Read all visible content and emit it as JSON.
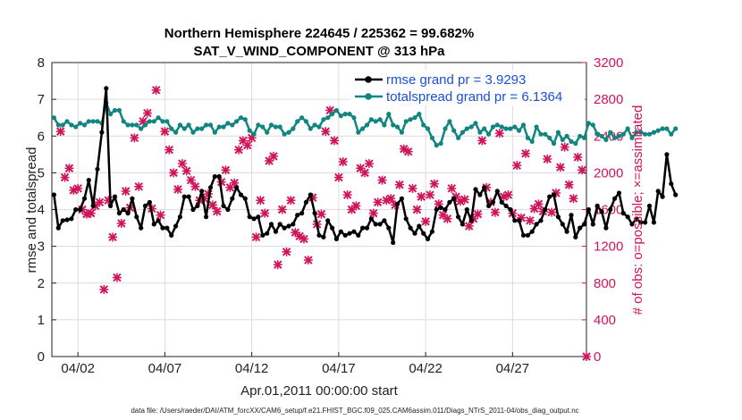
{
  "chart_data": {
    "type": "line",
    "title": "Northern Hemisphere 224645 / 225362 = 99.682%",
    "subtitle": "SAT_V_WIND_COMPONENT @ 313 hPa",
    "xlabel": "Apr.01,2011 00:00:00 start",
    "ylabel": "rmse and totalspread",
    "ylabel_right": "# of obs: o=possible; ×=assimilated",
    "footer": "data file: /Users/raeder/DAI/ATM_forcXX/CAM6_setup/f.e21.FHIST_BGC.f09_025.CAM6assim.011/Diags_NTrS_2011-04/obs_diag_output.nc",
    "xlim": [
      0.5,
      31.25
    ],
    "ylim": [
      0,
      8
    ],
    "ylim_right": [
      0,
      3200
    ],
    "x_ticks": [
      2,
      7,
      12,
      17,
      22,
      27
    ],
    "x_tick_labels": [
      "04/02",
      "04/07",
      "04/12",
      "04/17",
      "04/22",
      "04/27"
    ],
    "y_ticks": [
      0,
      1,
      2,
      3,
      4,
      5,
      6,
      7,
      8
    ],
    "y_ticks_right": [
      0,
      400,
      800,
      1200,
      1600,
      2000,
      2400,
      2800,
      3200
    ],
    "legend": [
      "rmse grand pr = 3.9293",
      "totalspread grand pr = 6.1364"
    ],
    "x_start": 0.625,
    "x_step": 0.25,
    "series": [
      {
        "name": "rmse",
        "color": "#000000",
        "axis": "left",
        "values": [
          4.4,
          3.5,
          3.7,
          3.72,
          3.75,
          4.0,
          4.0,
          4.3,
          4.8,
          4.1,
          5.1,
          6.1,
          7.3,
          4.1,
          4.35,
          3.9,
          4.0,
          3.9,
          4.3,
          3.8,
          3.5,
          4.1,
          4.2,
          3.6,
          3.7,
          3.5,
          3.5,
          3.3,
          3.55,
          3.8,
          4.35,
          4.35,
          4.0,
          4.1,
          4.5,
          3.8,
          4.6,
          4.9,
          4.9,
          4.1,
          4.0,
          4.3,
          4.6,
          4.4,
          4.3,
          3.8,
          3.75,
          3.8,
          3.3,
          3.35,
          3.6,
          3.4,
          3.6,
          3.5,
          3.55,
          3.6,
          3.85,
          3.9,
          4.2,
          4.4,
          3.9,
          3.3,
          3.25,
          3.7,
          3.5,
          3.2,
          3.4,
          3.3,
          3.35,
          3.4,
          3.3,
          3.5,
          3.5,
          3.75,
          3.6,
          3.6,
          3.7,
          3.5,
          3.1,
          4.15,
          4.3,
          3.75,
          3.5,
          3.35,
          3.55,
          3.35,
          3.2,
          3.4,
          4.0,
          4.05,
          4.0,
          4.2,
          4.3,
          3.8,
          3.6,
          4.0,
          3.7,
          4.55,
          4.4,
          4.6,
          4.1,
          4.2,
          4.5,
          4.2,
          4.1,
          4.0,
          3.7,
          3.7,
          3.3,
          3.3,
          3.4,
          3.6,
          3.7,
          4.0,
          4.35,
          4.4,
          3.8,
          3.6,
          3.4,
          3.85,
          3.25,
          3.5,
          3.6,
          4.0,
          3.6,
          4.1,
          3.95,
          3.5,
          4.0,
          4.3,
          4.45,
          3.9,
          3.8,
          3.6,
          3.75,
          3.65,
          3.65,
          4.1,
          3.65,
          4.5,
          4.35,
          5.5,
          4.7,
          4.4
        ]
      },
      {
        "name": "totalspread",
        "color": "#11857f",
        "axis": "left",
        "values": [
          6.5,
          6.3,
          6.3,
          6.4,
          6.3,
          6.25,
          6.35,
          6.3,
          6.4,
          6.4,
          6.4,
          6.35,
          6.9,
          6.6,
          6.7,
          6.7,
          6.4,
          6.3,
          6.3,
          6.3,
          6.2,
          6.3,
          6.4,
          6.4,
          6.5,
          6.4,
          6.4,
          6.2,
          6.1,
          6.3,
          6.2,
          6.3,
          6.1,
          6.2,
          6.2,
          6.3,
          6.3,
          6.1,
          6.25,
          6.25,
          6.35,
          6.3,
          6.4,
          6.5,
          6.45,
          6.15,
          6.05,
          6.3,
          6.25,
          6.1,
          6.3,
          6.25,
          6.25,
          6.05,
          6.1,
          6.2,
          6.4,
          6.5,
          6.4,
          6.2,
          6.3,
          6.25,
          6.45,
          6.5,
          6.6,
          6.7,
          6.55,
          6.6,
          6.6,
          6.5,
          6.1,
          6.2,
          6.3,
          6.45,
          6.4,
          6.45,
          6.3,
          6.6,
          6.3,
          6.25,
          6.1,
          6.4,
          6.45,
          6.5,
          6.6,
          6.3,
          6.2,
          5.95,
          5.75,
          5.8,
          6.2,
          6.4,
          6.15,
          5.95,
          6.1,
          6.2,
          6.25,
          6.35,
          6.1,
          6.2,
          6.05,
          6.25,
          6.3,
          6.25,
          6.2,
          6.2,
          6.25,
          6.15,
          6.3,
          5.95,
          5.85,
          6.25,
          6.05,
          6.05,
          5.95,
          5.8,
          6.1,
          5.9,
          6.0,
          5.85,
          5.8,
          6.0,
          5.95,
          6.35,
          6.3,
          6.05,
          6.0,
          5.9,
          6.1,
          5.95,
          6.0,
          6.05,
          6.2,
          5.95,
          6.1,
          6.1,
          6.05,
          6.05,
          6.1,
          6.15,
          6.2,
          6.2,
          6.05,
          6.2
        ]
      }
    ],
    "obs_assimilated": {
      "name": "# of obs assimilated",
      "color": "#d0145a",
      "axis": "right",
      "points": [
        [
          1.0,
          2450
        ],
        [
          1.25,
          1950
        ],
        [
          1.5,
          2050
        ],
        [
          1.75,
          1810
        ],
        [
          2.0,
          1830
        ],
        [
          2.25,
          1600
        ],
        [
          2.5,
          1550
        ],
        [
          2.75,
          1560
        ],
        [
          3.0,
          1640
        ],
        [
          3.25,
          1680
        ],
        [
          3.5,
          730
        ],
        [
          3.75,
          1700
        ],
        [
          4.0,
          1300
        ],
        [
          4.25,
          860
        ],
        [
          4.5,
          1450
        ],
        [
          4.75,
          1800
        ],
        [
          5.0,
          1620
        ],
        [
          5.25,
          2380
        ],
        [
          5.5,
          1850
        ],
        [
          5.75,
          2560
        ],
        [
          6.0,
          2650
        ],
        [
          6.25,
          1610
        ],
        [
          6.5,
          2900
        ],
        [
          6.75,
          1540
        ],
        [
          7.0,
          2450
        ],
        [
          7.25,
          2250
        ],
        [
          7.5,
          2000
        ],
        [
          7.75,
          1820
        ],
        [
          8.0,
          2100
        ],
        [
          8.25,
          2020
        ],
        [
          8.5,
          1920
        ],
        [
          8.75,
          1850
        ],
        [
          9.0,
          1700
        ],
        [
          9.25,
          1720
        ],
        [
          9.5,
          1770
        ],
        [
          9.75,
          1650
        ],
        [
          10.0,
          1580
        ],
        [
          10.25,
          1900
        ],
        [
          10.5,
          2030
        ],
        [
          10.75,
          1840
        ],
        [
          11.0,
          1890
        ],
        [
          11.25,
          2250
        ],
        [
          11.5,
          2350
        ],
        [
          11.75,
          2300
        ],
        [
          12.0,
          2380
        ],
        [
          12.25,
          1300
        ],
        [
          12.5,
          1700
        ],
        [
          12.75,
          1560
        ],
        [
          13.0,
          2130
        ],
        [
          13.25,
          2180
        ],
        [
          13.5,
          1000
        ],
        [
          13.75,
          1600
        ],
        [
          14.0,
          1140
        ],
        [
          14.25,
          1700
        ],
        [
          14.5,
          1350
        ],
        [
          14.75,
          1310
        ],
        [
          15.0,
          1280
        ],
        [
          15.25,
          1050
        ],
        [
          15.5,
          1730
        ],
        [
          15.75,
          1440
        ],
        [
          16.0,
          1550
        ],
        [
          16.25,
          2450
        ],
        [
          16.5,
          2680
        ],
        [
          16.75,
          2350
        ],
        [
          17.0,
          1950
        ],
        [
          17.25,
          2120
        ],
        [
          17.5,
          1760
        ],
        [
          17.75,
          1600
        ],
        [
          18.0,
          1640
        ],
        [
          18.25,
          2050
        ],
        [
          18.5,
          2000
        ],
        [
          18.75,
          2100
        ],
        [
          19.0,
          1560
        ],
        [
          19.25,
          1680
        ],
        [
          19.5,
          1920
        ],
        [
          19.75,
          1700
        ],
        [
          20.0,
          1720
        ],
        [
          20.25,
          1650
        ],
        [
          20.5,
          1870
        ],
        [
          20.75,
          2260
        ],
        [
          21.0,
          2230
        ],
        [
          21.25,
          1830
        ],
        [
          21.5,
          1600
        ],
        [
          21.75,
          1740
        ],
        [
          22.0,
          1470
        ],
        [
          22.25,
          1760
        ],
        [
          22.5,
          1880
        ],
        [
          22.75,
          1660
        ],
        [
          23.0,
          1540
        ],
        [
          23.25,
          1500
        ],
        [
          23.5,
          1830
        ],
        [
          23.75,
          1740
        ],
        [
          24.0,
          1690
        ],
        [
          24.25,
          1710
        ],
        [
          24.5,
          1420
        ],
        [
          24.75,
          1500
        ],
        [
          25.0,
          1550
        ],
        [
          25.25,
          2350
        ],
        [
          25.5,
          1840
        ],
        [
          25.75,
          1680
        ],
        [
          26.0,
          1570
        ],
        [
          26.25,
          2430
        ],
        [
          26.5,
          1740
        ],
        [
          26.75,
          1760
        ],
        [
          27.0,
          1560
        ],
        [
          27.25,
          2080
        ],
        [
          27.5,
          1510
        ],
        [
          27.75,
          2210
        ],
        [
          28.0,
          1480
        ],
        [
          28.25,
          1610
        ],
        [
          28.5,
          1660
        ],
        [
          28.75,
          1580
        ],
        [
          29.0,
          2150
        ],
        [
          29.25,
          1570
        ],
        [
          29.5,
          1780
        ],
        [
          29.75,
          2060
        ],
        [
          30.0,
          2280
        ],
        [
          30.25,
          1870
        ],
        [
          30.5,
          1720
        ],
        [
          30.75,
          2170
        ],
        [
          31.0,
          2030
        ],
        [
          31.25,
          0
        ]
      ]
    }
  }
}
